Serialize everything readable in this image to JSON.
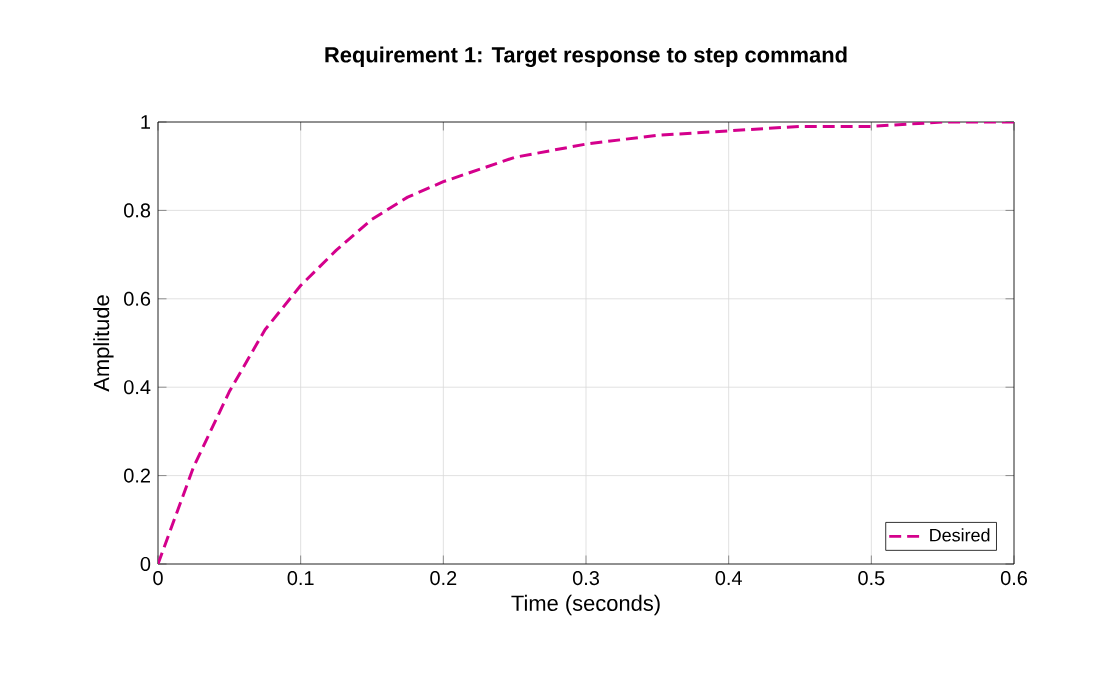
{
  "chart_data": {
    "type": "line",
    "title": "Requirement 1: Target response to step command",
    "xlabel": "Time (seconds)",
    "ylabel": "Amplitude",
    "x": [
      0,
      0.025,
      0.05,
      0.075,
      0.1,
      0.125,
      0.15,
      0.175,
      0.2,
      0.25,
      0.3,
      0.35,
      0.4,
      0.45,
      0.5,
      0.55,
      0.6
    ],
    "series": [
      {
        "name": "Desired",
        "color": "#d4008c",
        "values": [
          0,
          0.22,
          0.39,
          0.53,
          0.63,
          0.71,
          0.78,
          0.83,
          0.865,
          0.92,
          0.95,
          0.97,
          0.98,
          0.99,
          0.99,
          1.0,
          1.0
        ]
      }
    ],
    "xlim": [
      0,
      0.6
    ],
    "ylim": [
      0,
      1
    ],
    "xticks": [
      0,
      0.1,
      0.2,
      0.3,
      0.4,
      0.5,
      0.6
    ],
    "yticks": [
      0,
      0.2,
      0.4,
      0.6,
      0.8,
      1
    ],
    "grid": true,
    "legend": "bottom right",
    "line_style": "dashed",
    "marker": "none"
  }
}
